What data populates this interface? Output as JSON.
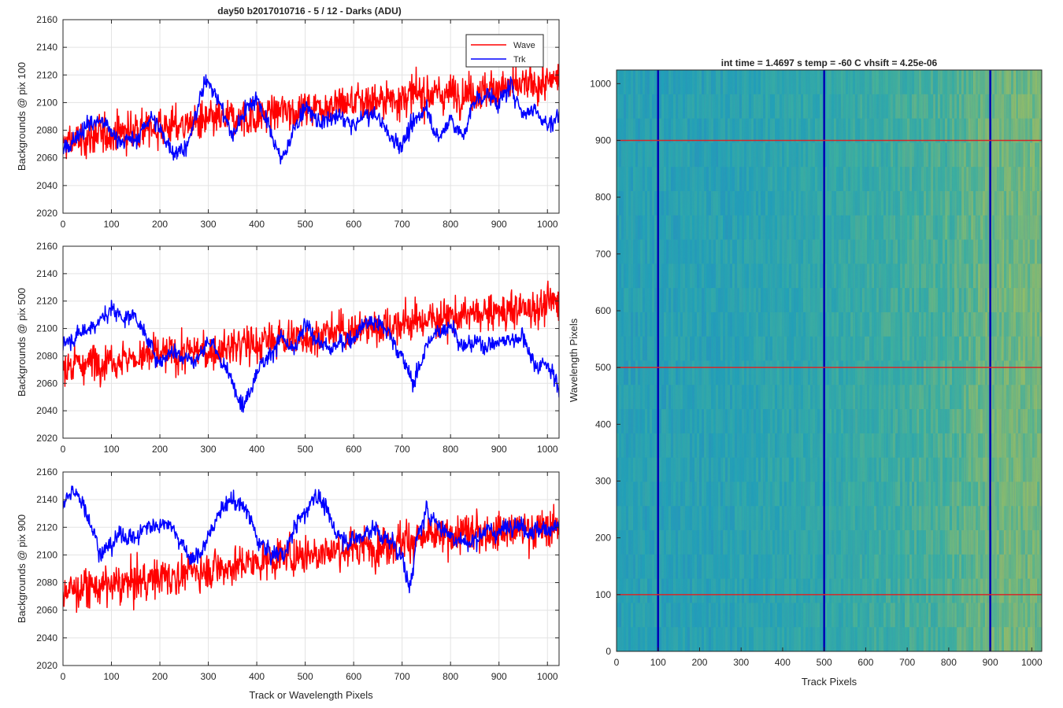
{
  "figure": {
    "left_title": "day50 b2017010716 - 5 / 12 - Darks (ADU)",
    "right_title": "int time = 1.4697 s   temp = -60 C   vhsift = 4.25e-06"
  },
  "chart_data": [
    {
      "type": "line",
      "title": "day50 b2017010716 - 5 / 12 - Darks (ADU)",
      "xlabel": "",
      "ylabel": "Backgrounds @ pix 100",
      "xlim": [
        0,
        1024
      ],
      "ylim": [
        2020,
        2160
      ],
      "xticks": [
        0,
        100,
        200,
        300,
        400,
        500,
        600,
        700,
        800,
        900,
        1000
      ],
      "yticks": [
        2020,
        2040,
        2060,
        2080,
        2100,
        2120,
        2140,
        2160
      ],
      "grid": true,
      "legend": "top-right",
      "series": [
        {
          "name": "Wave",
          "color": "#ff0000",
          "x": [
            0,
            50,
            100,
            150,
            200,
            250,
            300,
            350,
            400,
            450,
            500,
            550,
            600,
            650,
            700,
            750,
            800,
            850,
            900,
            950,
            1000,
            1024
          ],
          "y": [
            2070,
            2074,
            2078,
            2080,
            2082,
            2084,
            2086,
            2088,
            2090,
            2094,
            2096,
            2098,
            2100,
            2102,
            2104,
            2106,
            2106,
            2108,
            2110,
            2112,
            2114,
            2118
          ]
        },
        {
          "name": "Trk",
          "color": "#0000ff",
          "x": [
            0,
            25,
            50,
            80,
            110,
            150,
            180,
            200,
            230,
            260,
            280,
            300,
            325,
            350,
            375,
            400,
            425,
            450,
            475,
            500,
            525,
            550,
            575,
            600,
            625,
            650,
            675,
            700,
            725,
            750,
            775,
            800,
            825,
            850,
            875,
            900,
            925,
            950,
            975,
            1000,
            1024
          ],
          "y": [
            2064,
            2075,
            2084,
            2087,
            2074,
            2072,
            2090,
            2080,
            2064,
            2070,
            2100,
            2118,
            2098,
            2075,
            2095,
            2104,
            2082,
            2058,
            2078,
            2098,
            2086,
            2087,
            2090,
            2082,
            2092,
            2090,
            2075,
            2070,
            2085,
            2098,
            2072,
            2090,
            2074,
            2102,
            2106,
            2100,
            2112,
            2092,
            2096,
            2083,
            2091
          ]
        }
      ]
    },
    {
      "type": "line",
      "title": "",
      "xlabel": "",
      "ylabel": "Backgrounds @ pix 500",
      "xlim": [
        0,
        1024
      ],
      "ylim": [
        2020,
        2160
      ],
      "xticks": [
        0,
        100,
        200,
        300,
        400,
        500,
        600,
        700,
        800,
        900,
        1000
      ],
      "yticks": [
        2020,
        2040,
        2060,
        2080,
        2100,
        2120,
        2140,
        2160
      ],
      "grid": true,
      "series": [
        {
          "name": "Wave",
          "color": "#ff0000",
          "x": [
            0,
            50,
            100,
            150,
            200,
            250,
            300,
            350,
            400,
            450,
            500,
            550,
            600,
            650,
            700,
            750,
            800,
            850,
            900,
            950,
            1000,
            1024
          ],
          "y": [
            2072,
            2075,
            2078,
            2079,
            2080,
            2082,
            2084,
            2087,
            2089,
            2092,
            2094,
            2097,
            2099,
            2101,
            2104,
            2106,
            2108,
            2110,
            2112,
            2114,
            2117,
            2120
          ]
        },
        {
          "name": "Trk",
          "color": "#0000ff",
          "x": [
            0,
            25,
            50,
            75,
            100,
            125,
            150,
            175,
            200,
            225,
            250,
            275,
            300,
            325,
            350,
            375,
            400,
            425,
            450,
            475,
            500,
            525,
            550,
            575,
            600,
            625,
            650,
            675,
            700,
            725,
            750,
            775,
            800,
            825,
            850,
            875,
            900,
            925,
            950,
            975,
            1000,
            1024
          ],
          "y": [
            2090,
            2094,
            2100,
            2105,
            2114,
            2108,
            2110,
            2090,
            2076,
            2084,
            2080,
            2076,
            2092,
            2078,
            2060,
            2044,
            2070,
            2080,
            2094,
            2082,
            2102,
            2092,
            2084,
            2090,
            2094,
            2105,
            2104,
            2096,
            2078,
            2060,
            2088,
            2097,
            2104,
            2086,
            2090,
            2088,
            2090,
            2092,
            2095,
            2072,
            2075,
            2055
          ]
        }
      ]
    },
    {
      "type": "line",
      "title": "",
      "xlabel": "Track or Wavelength Pixels",
      "ylabel": "Backgrounds @ pix 900",
      "xlim": [
        0,
        1024
      ],
      "ylim": [
        2020,
        2160
      ],
      "xticks": [
        0,
        100,
        200,
        300,
        400,
        500,
        600,
        700,
        800,
        900,
        1000
      ],
      "yticks": [
        2020,
        2040,
        2060,
        2080,
        2100,
        2120,
        2140,
        2160
      ],
      "grid": true,
      "series": [
        {
          "name": "Wave",
          "color": "#ff0000",
          "x": [
            0,
            50,
            100,
            150,
            200,
            250,
            300,
            350,
            400,
            450,
            500,
            550,
            600,
            650,
            700,
            750,
            800,
            850,
            900,
            950,
            1000,
            1024
          ],
          "y": [
            2074,
            2076,
            2078,
            2080,
            2084,
            2086,
            2090,
            2092,
            2095,
            2098,
            2101,
            2103,
            2105,
            2107,
            2110,
            2112,
            2114,
            2116,
            2117,
            2118,
            2119,
            2122
          ]
        },
        {
          "name": "Trk",
          "color": "#0000ff",
          "x": [
            0,
            20,
            40,
            60,
            80,
            100,
            120,
            150,
            170,
            200,
            220,
            250,
            270,
            300,
            320,
            350,
            380,
            400,
            430,
            460,
            480,
            500,
            520,
            540,
            560,
            580,
            600,
            620,
            640,
            660,
            680,
            700,
            715,
            730,
            750,
            780,
            810,
            840,
            870,
            900,
            930,
            960,
            990,
            1024
          ],
          "y": [
            2138,
            2145,
            2140,
            2120,
            2100,
            2108,
            2115,
            2112,
            2120,
            2122,
            2124,
            2105,
            2095,
            2112,
            2130,
            2140,
            2132,
            2112,
            2100,
            2102,
            2122,
            2130,
            2145,
            2135,
            2118,
            2112,
            2110,
            2115,
            2120,
            2112,
            2110,
            2098,
            2075,
            2110,
            2132,
            2120,
            2112,
            2108,
            2118,
            2116,
            2124,
            2118,
            2118,
            2121
          ]
        }
      ]
    },
    {
      "type": "heatmap",
      "title": "int time = 1.4697 s   temp = -60 C   vhsift = 4.25e-06",
      "xlabel": "Track Pixels",
      "ylabel": "Wavelength Pixels",
      "xlim": [
        0,
        1024
      ],
      "ylim": [
        0,
        1024
      ],
      "xticks": [
        0,
        100,
        200,
        300,
        400,
        500,
        600,
        700,
        800,
        900,
        1000
      ],
      "yticks": [
        0,
        100,
        200,
        300,
        400,
        500,
        600,
        700,
        800,
        900,
        1000
      ],
      "colormap": [
        "#2a7fc9",
        "#1fa2b8",
        "#3bb29e",
        "#8cbf6a",
        "#c7c24a"
      ],
      "column_profile": {
        "x": [
          0,
          100,
          200,
          300,
          400,
          500,
          600,
          700,
          800,
          900,
          1024
        ],
        "level": [
          0.28,
          0.3,
          0.3,
          0.32,
          0.36,
          0.4,
          0.45,
          0.5,
          0.55,
          0.68,
          0.7
        ]
      },
      "vertical_lines": {
        "x": [
          100,
          500,
          900
        ],
        "color": "#0000b4"
      },
      "horizontal_lines": {
        "y": [
          100,
          500,
          900
        ],
        "color": "#d62728"
      }
    }
  ]
}
